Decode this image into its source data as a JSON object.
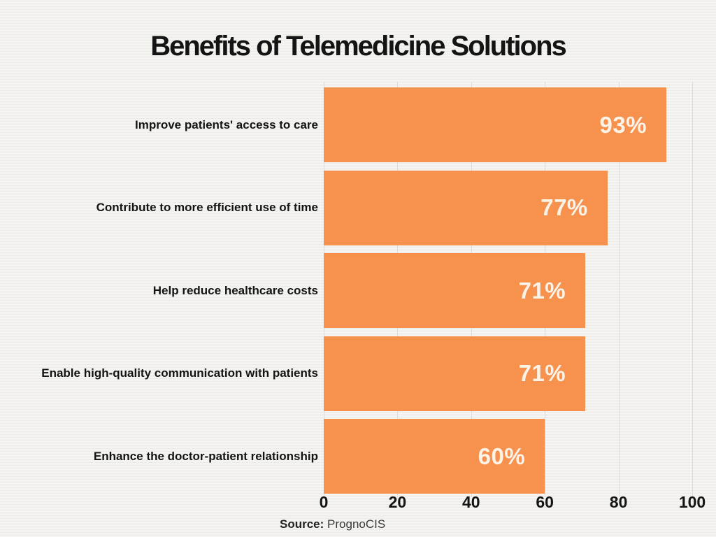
{
  "title": "Benefits of Telemedicine Solutions",
  "source": {
    "label": "Source:",
    "value": "PrognoCIS"
  },
  "colors": {
    "bar": "#f7914e",
    "bar_value_text": "#fbf3e8",
    "text": "#141414",
    "gridline": "#dcdbd7",
    "background": "#f3f2ef"
  },
  "chart_data": {
    "type": "bar",
    "orientation": "horizontal",
    "title": "Benefits of Telemedicine Solutions",
    "categories": [
      "Improve patients' access to care",
      "Contribute to more efficient use of time",
      "Help reduce healthcare costs",
      "Enable high-quality communication with patients",
      "Enhance the doctor-patient relationship"
    ],
    "values": [
      93,
      77,
      71,
      71,
      60
    ],
    "value_labels": [
      "93%",
      "77%",
      "71%",
      "71%",
      "60%"
    ],
    "x_ticks": [
      0,
      20,
      40,
      60,
      80,
      100
    ],
    "xlim": [
      0,
      100
    ],
    "grid": true,
    "legend": false,
    "xlabel": "",
    "ylabel": "",
    "source": "PrognoCIS"
  }
}
